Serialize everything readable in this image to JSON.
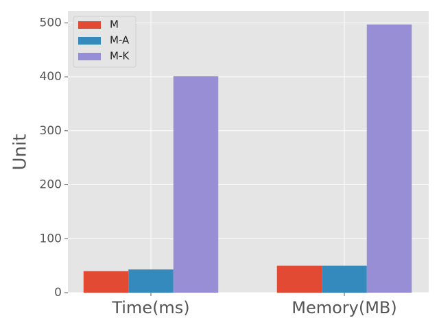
{
  "chart_data": {
    "type": "bar",
    "y_label": "Unit",
    "categories": [
      "Time(ms)",
      "Memory(MB)"
    ],
    "series": [
      {
        "name": "M",
        "color": "#E24A33",
        "values": [
          40,
          50
        ]
      },
      {
        "name": "M-A",
        "color": "#348ABD",
        "values": [
          43,
          50
        ]
      },
      {
        "name": "M-K",
        "color": "#988ED5",
        "values": [
          401,
          497
        ]
      }
    ],
    "ylim": [
      0,
      522
    ],
    "yticks": [
      0,
      100,
      200,
      300,
      400,
      500
    ],
    "grid": true,
    "legend": "upper left"
  }
}
